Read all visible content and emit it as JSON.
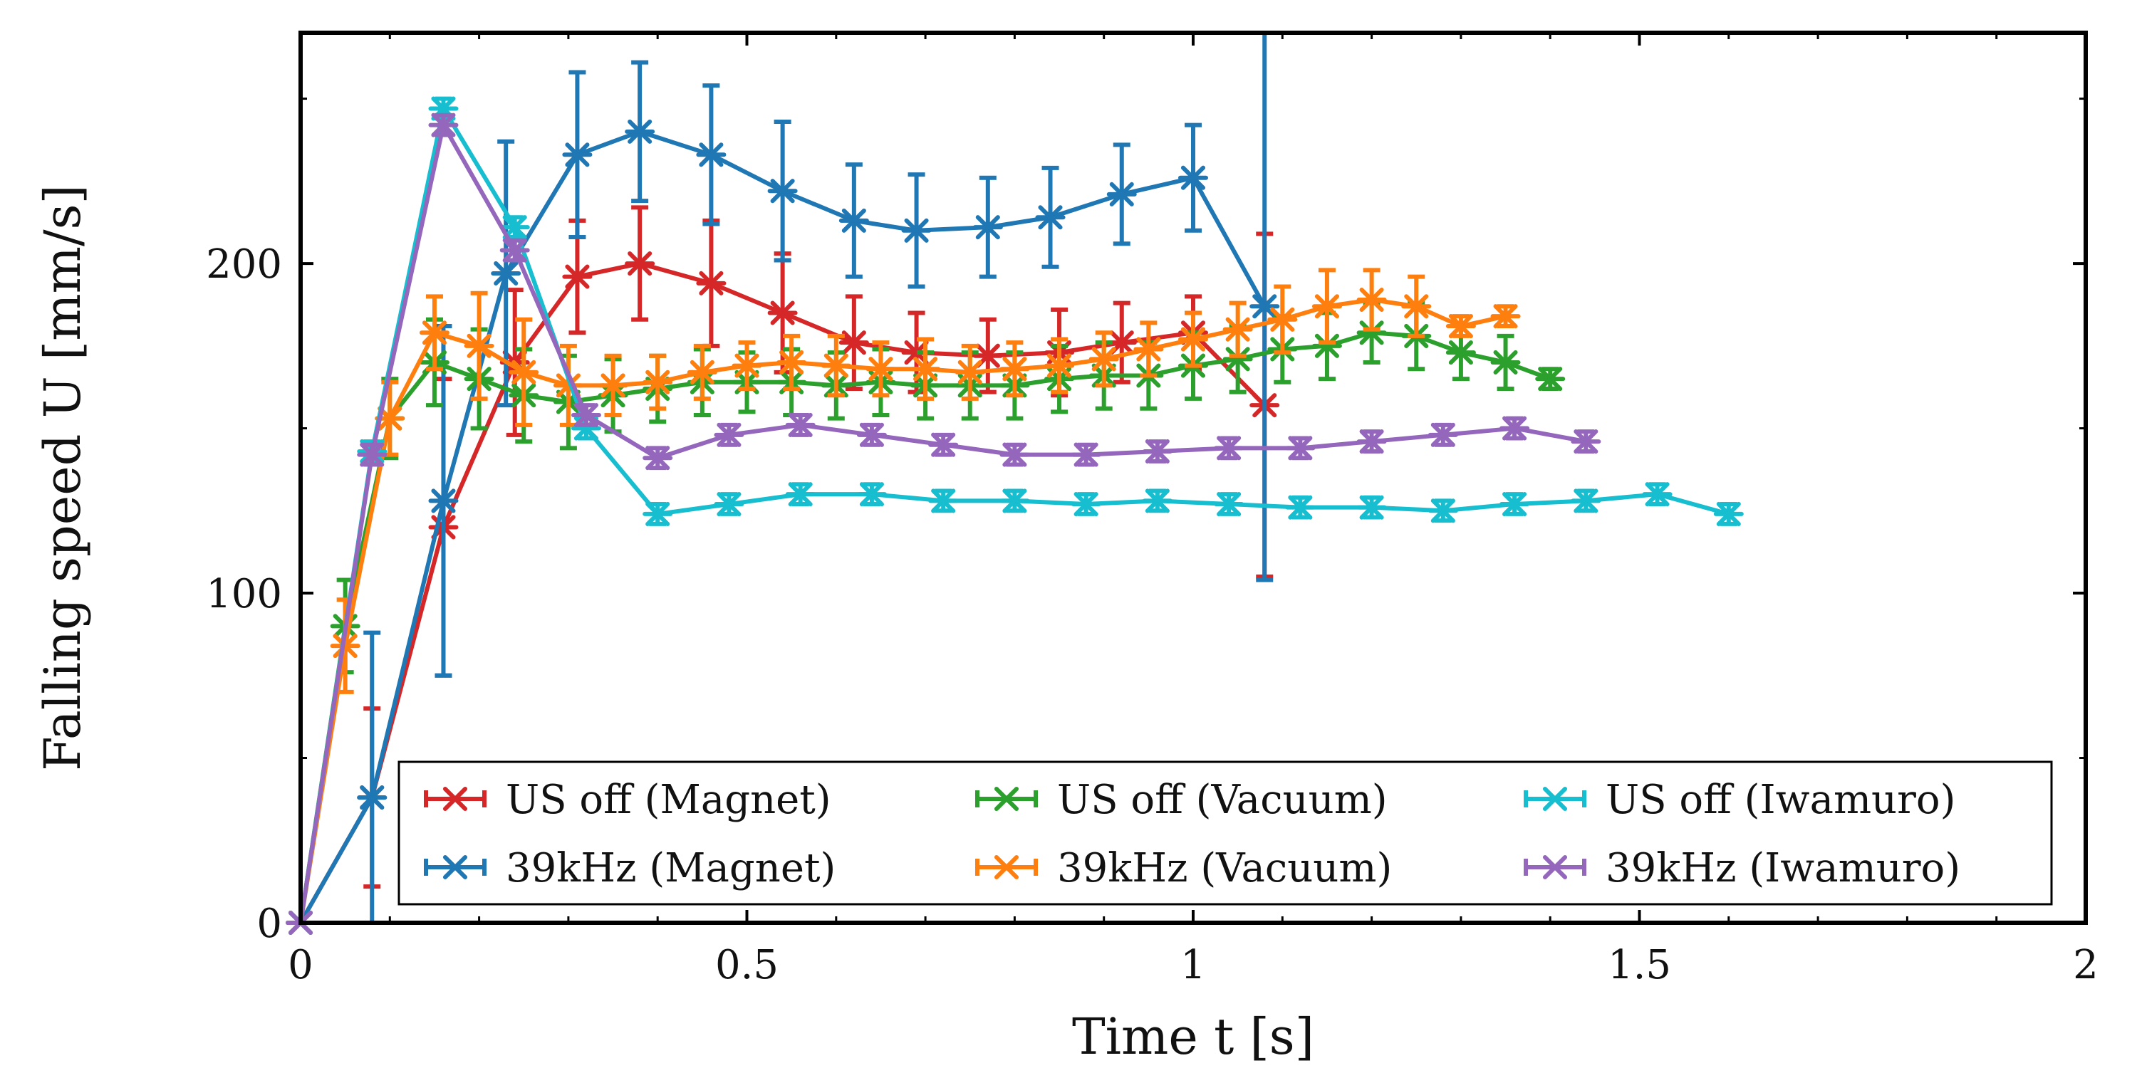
{
  "chart_data": {
    "type": "line",
    "xlabel": "Time t [s]",
    "ylabel": "Falling speed U [mm/s]",
    "xlim": [
      0,
      2
    ],
    "ylim": [
      0,
      270
    ],
    "xticks": [
      {
        "value": 0,
        "label": "0"
      },
      {
        "value": 0.5,
        "label": "0.5"
      },
      {
        "value": 1,
        "label": "1"
      },
      {
        "value": 1.5,
        "label": "1.5"
      },
      {
        "value": 2,
        "label": "2"
      }
    ],
    "yticks": [
      {
        "value": 0,
        "label": "0"
      },
      {
        "value": 100,
        "label": "100"
      },
      {
        "value": 200,
        "label": "200"
      }
    ],
    "grid": false,
    "legend_position": "bottom",
    "marker": "asterisk",
    "series": [
      {
        "name": "US off (Magnet)",
        "color": "#d62728",
        "x": [
          0,
          0.08,
          0.16,
          0.24,
          0.31,
          0.38,
          0.46,
          0.54,
          0.62,
          0.69,
          0.77,
          0.85,
          0.92,
          1.0,
          1.08
        ],
        "y": [
          0,
          38,
          120,
          170,
          196,
          200,
          194,
          185,
          176,
          173,
          172,
          173,
          176,
          179,
          157
        ],
        "err": [
          0,
          27,
          45,
          22,
          17,
          17,
          19,
          18,
          14,
          12,
          11,
          13,
          12,
          11,
          52
        ]
      },
      {
        "name": "39kHz (Magnet)",
        "color": "#1f77b4",
        "x": [
          0,
          0.08,
          0.16,
          0.23,
          0.31,
          0.38,
          0.46,
          0.54,
          0.62,
          0.69,
          0.77,
          0.84,
          0.92,
          1.0,
          1.08
        ],
        "y": [
          0,
          38,
          128,
          197,
          233,
          240,
          233,
          222,
          213,
          210,
          211,
          214,
          221,
          226,
          187
        ],
        "err": [
          0,
          50,
          53,
          40,
          25,
          21,
          21,
          21,
          17,
          17,
          15,
          15,
          15,
          16,
          83
        ]
      },
      {
        "name": "US off (Vacuum)",
        "color": "#2ca02c",
        "x": [
          0,
          0.05,
          0.1,
          0.15,
          0.2,
          0.25,
          0.3,
          0.35,
          0.4,
          0.45,
          0.5,
          0.55,
          0.6,
          0.65,
          0.7,
          0.75,
          0.8,
          0.85,
          0.9,
          0.95,
          1.0,
          1.05,
          1.1,
          1.15,
          1.2,
          1.25,
          1.3,
          1.35,
          1.4
        ],
        "y": [
          0,
          90,
          153,
          170,
          165,
          160,
          158,
          160,
          162,
          164,
          164,
          164,
          163,
          164,
          163,
          163,
          163,
          165,
          166,
          166,
          169,
          171,
          174,
          175,
          179,
          178,
          173,
          170,
          165
        ],
        "err": [
          0,
          14,
          12,
          13,
          15,
          14,
          14,
          11,
          10,
          10,
          9,
          10,
          10,
          10,
          10,
          10,
          10,
          10,
          10,
          10,
          10,
          10,
          10,
          10,
          9,
          10,
          8,
          8,
          3
        ]
      },
      {
        "name": "39kHz (Vacuum)",
        "color": "#ff7f0e",
        "x": [
          0,
          0.05,
          0.1,
          0.15,
          0.2,
          0.25,
          0.3,
          0.35,
          0.4,
          0.45,
          0.5,
          0.55,
          0.6,
          0.65,
          0.7,
          0.75,
          0.8,
          0.85,
          0.9,
          0.95,
          1.0,
          1.05,
          1.1,
          1.15,
          1.2,
          1.25,
          1.3,
          1.35
        ],
        "y": [
          0,
          84,
          153,
          179,
          175,
          167,
          163,
          163,
          164,
          167,
          169,
          170,
          169,
          168,
          168,
          167,
          168,
          169,
          171,
          174,
          177,
          180,
          183,
          187,
          189,
          187,
          181,
          184
        ],
        "err": [
          0,
          14,
          11,
          11,
          16,
          16,
          12,
          9,
          8,
          8,
          7,
          8,
          9,
          8,
          9,
          8,
          8,
          8,
          8,
          8,
          8,
          8,
          10,
          11,
          9,
          9,
          3,
          3
        ]
      },
      {
        "name": "US off (Iwamuro)",
        "color": "#17becf",
        "x": [
          0,
          0.08,
          0.16,
          0.24,
          0.32,
          0.4,
          0.48,
          0.56,
          0.64,
          0.72,
          0.8,
          0.88,
          0.96,
          1.04,
          1.12,
          1.2,
          1.28,
          1.36,
          1.44,
          1.52,
          1.6
        ],
        "y": [
          0,
          143,
          247,
          211,
          150,
          124,
          127,
          130,
          130,
          128,
          128,
          127,
          128,
          127,
          126,
          126,
          125,
          127,
          128,
          130,
          124
        ],
        "err": [
          0,
          3,
          3,
          3,
          3,
          3,
          3,
          3,
          3,
          3,
          3,
          3,
          3,
          3,
          3,
          3,
          3,
          3,
          3,
          3,
          3
        ]
      },
      {
        "name": "39kHz (Iwamuro)",
        "color": "#9467bd",
        "x": [
          0,
          0.08,
          0.16,
          0.24,
          0.32,
          0.4,
          0.48,
          0.56,
          0.64,
          0.72,
          0.8,
          0.88,
          0.96,
          1.04,
          1.12,
          1.2,
          1.28,
          1.36,
          1.44
        ],
        "y": [
          0,
          142,
          242,
          204,
          154,
          141,
          148,
          151,
          148,
          145,
          142,
          142,
          143,
          144,
          144,
          146,
          148,
          150,
          146
        ],
        "err": [
          0,
          3,
          3,
          3,
          3,
          3,
          3,
          3,
          3,
          3,
          3,
          3,
          3,
          3,
          3,
          3,
          3,
          3,
          3
        ]
      }
    ]
  }
}
